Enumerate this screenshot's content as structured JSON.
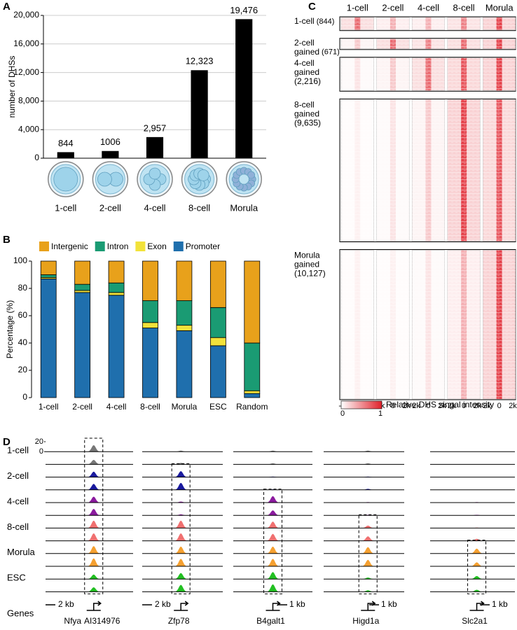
{
  "panels": [
    "A",
    "B",
    "C",
    "D"
  ],
  "chart_data": [
    {
      "type": "bar",
      "ylabel": "number of DHSs",
      "categories": [
        "1-cell",
        "2-cell",
        "4-cell",
        "8-cell",
        "Morula"
      ],
      "values": [
        844,
        1006,
        2957,
        12323,
        19476
      ],
      "value_labels": [
        "844",
        "1006",
        "2,957",
        "12,323",
        "19,476"
      ],
      "color": "#000000",
      "ylim": [
        0,
        20000
      ],
      "yticks": [
        0,
        {
          "value": 4000,
          "label": "4,000"
        },
        {
          "value": 8000,
          "label": "8,000"
        },
        {
          "value": 12000,
          "label": "12,000"
        },
        {
          "value": 16000,
          "label": "16,000"
        },
        {
          "value": 20000,
          "label": "20,000"
        }
      ],
      "grid": true
    },
    {
      "type": "stacked_bar",
      "ylabel": "Percentage (%)",
      "categories": [
        "1-cell",
        "2-cell",
        "4-cell",
        "8-cell",
        "Morula",
        "ESC",
        "Random"
      ],
      "series": [
        {
          "name": "Promoter",
          "color": "#1f6fad",
          "values": [
            87,
            77,
            75,
            51,
            49,
            38,
            3
          ]
        },
        {
          "name": "Exon",
          "color": "#f2e23a",
          "values": [
            1,
            1.5,
            2,
            4,
            4,
            6,
            2
          ]
        },
        {
          "name": "Intron",
          "color": "#1a9b73",
          "values": [
            2,
            4.5,
            7,
            16,
            18,
            22,
            35
          ]
        },
        {
          "name": "Intergenic",
          "color": "#e8a11b",
          "values": [
            10,
            17,
            16,
            29,
            29,
            34,
            60
          ]
        }
      ],
      "ylim": [
        0,
        100
      ],
      "yticks": [
        0,
        20,
        40,
        60,
        80,
        100
      ]
    },
    {
      "type": "heatmap",
      "columns": [
        "1-cell",
        "2-cell",
        "4-cell",
        "8-cell",
        "Morula"
      ],
      "rows": [
        {
          "lines": [
            "1-cell"
          ],
          "count": 844,
          "count_label": "(844)"
        },
        {
          "lines": [
            "2-cell",
            "gained"
          ],
          "count": 671,
          "count_label": "(671)"
        },
        {
          "lines": [
            "4-cell",
            "gained"
          ],
          "count": 2216,
          "count_label": "(2,216)"
        },
        {
          "lines": [
            "8-cell",
            "gained"
          ],
          "count": 9635,
          "count_label": "(9,635)"
        },
        {
          "lines": [
            "Morula",
            "gained"
          ],
          "count": 10127,
          "count_label": "(10,127)"
        }
      ],
      "intensity": [
        [
          0.6,
          0.3,
          0.3,
          0.5,
          0.8
        ],
        [
          0.2,
          0.6,
          0.5,
          0.6,
          0.8
        ],
        [
          0.1,
          0.2,
          0.6,
          0.7,
          0.8
        ],
        [
          0.05,
          0.1,
          0.2,
          0.8,
          0.7
        ],
        [
          0.05,
          0.05,
          0.1,
          0.3,
          0.8
        ]
      ],
      "xticks": [
        "-2k",
        "0",
        "2k"
      ],
      "color": "#e0202a",
      "colorbar_label": "Relative DHS singal intensity",
      "colorbar_ticks": [
        0,
        1
      ]
    },
    {
      "type": "tracks",
      "stages": [
        {
          "name": "1-cell",
          "color": "#777777"
        },
        {
          "name": "2-cell",
          "color": "#1a1a9e"
        },
        {
          "name": "4-cell",
          "color": "#8b1a9e"
        },
        {
          "name": "8-cell",
          "color": "#f07070"
        },
        {
          "name": "Morula",
          "color": "#f5a030"
        },
        {
          "name": "ESC",
          "color": "#22c022"
        }
      ],
      "ylim": [
        0,
        20
      ],
      "yticks": [
        0,
        20
      ],
      "genes_label": "Genes",
      "loci": [
        {
          "genes": [
            "Nfya",
            "AI314976"
          ],
          "scale": "2 kb",
          "peak": 0.55,
          "box_from": 0,
          "heights": [
            13,
            9,
            11,
            12,
            12,
            13,
            15,
            15,
            15,
            16,
            9,
            9
          ]
        },
        {
          "genes": [
            "Zfp78"
          ],
          "scale": "2 kb",
          "peak": 0.48,
          "box_from": 2,
          "heights": [
            2,
            3,
            12,
            14,
            2,
            2,
            15,
            15,
            14,
            15,
            12,
            14
          ]
        },
        {
          "genes": [
            "B4galt1"
          ],
          "scale": "1 kb",
          "peak": 0.5,
          "box_from": 4,
          "heights": [
            2,
            2,
            1,
            1,
            13,
            10,
            13,
            14,
            14,
            15,
            14,
            15
          ]
        },
        {
          "genes": [
            "Higd1a"
          ],
          "scale": "1 kb",
          "peak": 0.55,
          "box_from": 6,
          "heights": [
            2,
            2,
            1,
            2,
            1,
            1,
            5,
            9,
            13,
            13,
            3,
            3
          ]
        },
        {
          "genes": [
            "Slc2a1"
          ],
          "scale": "1 kb",
          "peak": 0.55,
          "box_from": 8,
          "heights": [
            0,
            0,
            0,
            0,
            1,
            1,
            1,
            4,
            10,
            8,
            6,
            4
          ]
        }
      ]
    }
  ]
}
